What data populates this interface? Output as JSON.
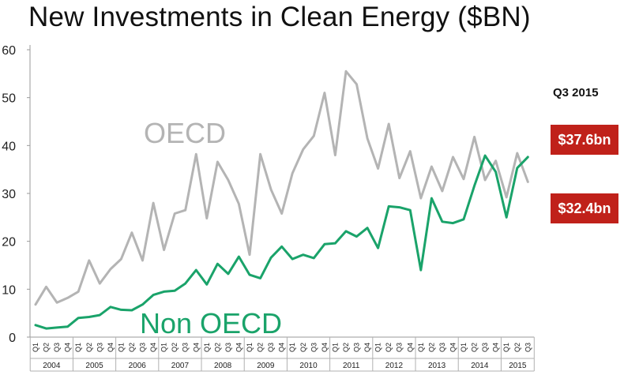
{
  "title": "New Investments in Clean Energy ($BN)",
  "callouts": {
    "header": "Q3 2015",
    "non_oecd": "$37.6bn",
    "oecd": "$32.4bn",
    "color": "#c0211a"
  },
  "chart_data": {
    "type": "line",
    "title": "New Investments in Clean Energy ($BN)",
    "ylim": [
      0,
      60
    ],
    "yticks": [
      0,
      10,
      20,
      30,
      40,
      50,
      60
    ],
    "grid": false,
    "quarter_labels": [
      "Q1",
      "Q2",
      "Q3",
      "Q4"
    ],
    "years": [
      "2004",
      "2005",
      "2006",
      "2007",
      "2008",
      "2009",
      "2010",
      "2011",
      "2012",
      "2013",
      "2014",
      "2015"
    ],
    "x": [
      "2004 Q1",
      "2004 Q2",
      "2004 Q3",
      "2004 Q4",
      "2005 Q1",
      "2005 Q2",
      "2005 Q3",
      "2005 Q4",
      "2006 Q1",
      "2006 Q2",
      "2006 Q3",
      "2006 Q4",
      "2007 Q1",
      "2007 Q2",
      "2007 Q3",
      "2007 Q4",
      "2008 Q1",
      "2008 Q2",
      "2008 Q3",
      "2008 Q4",
      "2009 Q1",
      "2009 Q2",
      "2009 Q3",
      "2009 Q4",
      "2010 Q1",
      "2010 Q2",
      "2010 Q3",
      "2010 Q4",
      "2011 Q1",
      "2011 Q2",
      "2011 Q3",
      "2011 Q4",
      "2012 Q1",
      "2012 Q2",
      "2012 Q3",
      "2012 Q4",
      "2013 Q1",
      "2013 Q2",
      "2013 Q3",
      "2013 Q4",
      "2014 Q1",
      "2014 Q2",
      "2014 Q3",
      "2014 Q4",
      "2015 Q1",
      "2015 Q2",
      "2015 Q3"
    ],
    "series": [
      {
        "name": "OECD",
        "color": "#b4b4b4",
        "values": [
          6.8,
          10.5,
          7.2,
          8.2,
          9.5,
          16.0,
          11.2,
          14.2,
          16.3,
          21.8,
          16.0,
          28.0,
          18.2,
          25.8,
          26.5,
          38.2,
          24.8,
          36.6,
          32.8,
          27.8,
          17.2,
          38.2,
          30.8,
          25.8,
          34.2,
          39.2,
          42.0,
          51.0,
          38.0,
          55.5,
          52.8,
          41.5,
          35.2,
          44.5,
          33.2,
          38.8,
          29.0,
          35.6,
          30.5,
          37.6,
          33.0,
          41.8,
          32.8,
          36.8,
          29.2,
          38.4,
          32.4
        ]
      },
      {
        "name": "Non OECD",
        "color": "#1aa36a",
        "values": [
          2.5,
          1.8,
          2.0,
          2.2,
          4.0,
          4.2,
          4.6,
          6.3,
          5.7,
          5.6,
          6.8,
          8.8,
          9.5,
          9.7,
          11.2,
          14.0,
          11.0,
          15.3,
          13.2,
          16.8,
          13.0,
          12.3,
          16.6,
          18.9,
          16.3,
          17.2,
          16.5,
          19.4,
          19.6,
          22.1,
          21.0,
          22.8,
          18.6,
          27.3,
          27.1,
          26.5,
          14.0,
          29.0,
          24.1,
          23.8,
          24.6,
          31.6,
          37.9,
          34.5,
          25.0,
          35.3,
          37.6
        ]
      }
    ]
  }
}
